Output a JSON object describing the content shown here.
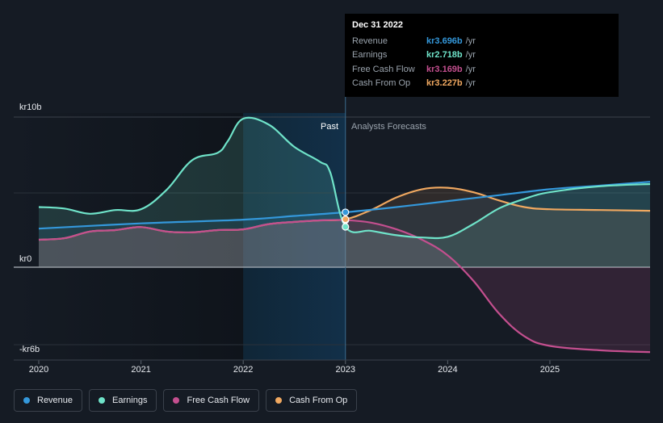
{
  "tooltip": {
    "date": "Dec 31 2022",
    "rows": [
      {
        "name": "Revenue",
        "value": "kr3.696b",
        "unit": "/yr",
        "color": "#3498db"
      },
      {
        "name": "Earnings",
        "value": "kr2.718b",
        "unit": "/yr",
        "color": "#6fe3c9"
      },
      {
        "name": "Free Cash Flow",
        "value": "kr3.169b",
        "unit": "/yr",
        "color": "#c44f8f"
      },
      {
        "name": "Cash From Op",
        "value": "kr3.227b",
        "unit": "/yr",
        "color": "#f0a860"
      }
    ]
  },
  "legend": [
    {
      "label": "Revenue",
      "color": "#3498db"
    },
    {
      "label": "Earnings",
      "color": "#6fe3c9"
    },
    {
      "label": "Free Cash Flow",
      "color": "#c44f8f"
    },
    {
      "label": "Cash From Op",
      "color": "#f0a860"
    }
  ],
  "chart_data": {
    "type": "line",
    "title": "",
    "ylabel": "",
    "xlabel": "",
    "y_tick_labels": [
      "kr10b",
      "kr0",
      "-kr6b"
    ],
    "ylim": [
      -6,
      10
    ],
    "xlim": [
      2020.0,
      2025.98
    ],
    "x_ticks": [
      {
        "value": 2020,
        "label": "2020"
      },
      {
        "value": 2021,
        "label": "2021"
      },
      {
        "value": 2022,
        "label": "2022"
      },
      {
        "value": 2023,
        "label": "2023"
      },
      {
        "value": 2024,
        "label": "2024"
      },
      {
        "value": 2025,
        "label": "2025"
      }
    ],
    "divider_x": 2023.0,
    "highlight_range": [
      2022.0,
      2023.0
    ],
    "past_label": "Past",
    "forecast_label": "Analysts Forecasts",
    "series": [
      {
        "name": "Revenue",
        "color": "#3498db",
        "points": [
          [
            2020.0,
            2.6
          ],
          [
            2021.0,
            2.95
          ],
          [
            2022.0,
            3.2
          ],
          [
            2022.5,
            3.45
          ],
          [
            2023.0,
            3.7
          ],
          [
            2023.5,
            4.05
          ],
          [
            2024.0,
            4.45
          ],
          [
            2024.5,
            4.85
          ],
          [
            2025.0,
            5.25
          ],
          [
            2025.5,
            5.5
          ],
          [
            2025.98,
            5.75
          ]
        ]
      },
      {
        "name": "Earnings",
        "color": "#6fe3c9",
        "points": [
          [
            2020.0,
            4.05
          ],
          [
            2020.25,
            3.95
          ],
          [
            2020.5,
            3.6
          ],
          [
            2020.75,
            3.85
          ],
          [
            2021.0,
            3.9
          ],
          [
            2021.25,
            5.2
          ],
          [
            2021.5,
            7.2
          ],
          [
            2021.75,
            7.7
          ],
          [
            2021.85,
            8.5
          ],
          [
            2022.0,
            10.0
          ],
          [
            2022.25,
            9.6
          ],
          [
            2022.5,
            8.1
          ],
          [
            2022.75,
            7.1
          ],
          [
            2022.85,
            6.4
          ],
          [
            2023.0,
            2.718
          ],
          [
            2023.25,
            2.45
          ],
          [
            2023.5,
            2.15
          ],
          [
            2023.75,
            2.0
          ],
          [
            2024.0,
            2.05
          ],
          [
            2024.25,
            2.9
          ],
          [
            2024.5,
            3.95
          ],
          [
            2024.75,
            4.6
          ],
          [
            2025.0,
            5.05
          ],
          [
            2025.5,
            5.45
          ],
          [
            2025.98,
            5.6
          ]
        ]
      },
      {
        "name": "Free Cash Flow",
        "color": "#c44f8f",
        "points": [
          [
            2020.0,
            1.85
          ],
          [
            2020.25,
            1.95
          ],
          [
            2020.5,
            2.4
          ],
          [
            2020.75,
            2.5
          ],
          [
            2021.0,
            2.7
          ],
          [
            2021.25,
            2.4
          ],
          [
            2021.5,
            2.35
          ],
          [
            2021.75,
            2.5
          ],
          [
            2022.0,
            2.55
          ],
          [
            2022.25,
            2.9
          ],
          [
            2022.5,
            3.05
          ],
          [
            2022.75,
            3.15
          ],
          [
            2023.0,
            3.169
          ],
          [
            2023.25,
            3.0
          ],
          [
            2023.5,
            2.55
          ],
          [
            2023.75,
            1.85
          ],
          [
            2024.0,
            0.8
          ],
          [
            2024.25,
            -0.9
          ],
          [
            2024.5,
            -3.1
          ],
          [
            2024.75,
            -4.65
          ],
          [
            2025.0,
            -5.3
          ],
          [
            2025.5,
            -5.6
          ],
          [
            2025.98,
            -5.72
          ]
        ]
      },
      {
        "name": "Cash From Op",
        "color": "#f0a860",
        "points": [
          [
            2020.0,
            1.85
          ],
          [
            2020.25,
            1.95
          ],
          [
            2020.5,
            2.4
          ],
          [
            2020.75,
            2.5
          ],
          [
            2021.0,
            2.7
          ],
          [
            2021.25,
            2.4
          ],
          [
            2021.5,
            2.35
          ],
          [
            2021.75,
            2.5
          ],
          [
            2022.0,
            2.55
          ],
          [
            2022.25,
            2.9
          ],
          [
            2022.5,
            3.05
          ],
          [
            2022.75,
            3.15
          ],
          [
            2023.0,
            3.227
          ],
          [
            2023.25,
            3.85
          ],
          [
            2023.5,
            4.7
          ],
          [
            2023.75,
            5.25
          ],
          [
            2024.0,
            5.35
          ],
          [
            2024.25,
            5.05
          ],
          [
            2024.5,
            4.5
          ],
          [
            2024.75,
            4.05
          ],
          [
            2025.0,
            3.9
          ],
          [
            2025.5,
            3.85
          ],
          [
            2025.98,
            3.8
          ]
        ]
      }
    ]
  }
}
